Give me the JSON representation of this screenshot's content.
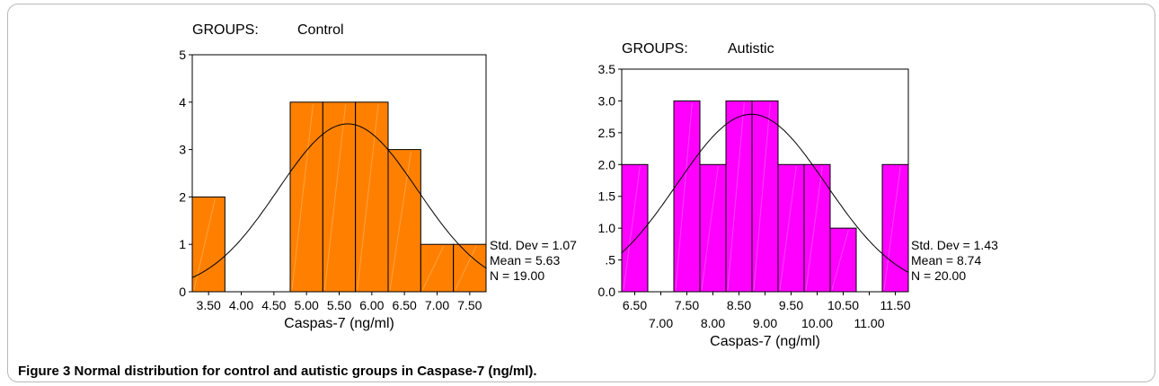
{
  "caption": {
    "label": "Figure 3",
    "text": "Normal distribution for control and autistic groups in Caspase-7 (ng/ml)."
  },
  "chart_data": [
    {
      "type": "bar",
      "group_label": "GROUPS:",
      "group_value": "Control",
      "xlabel": "Caspas-7 (ng/ml)",
      "bar_color": "#ff8000",
      "bins": [
        3.5,
        4.0,
        4.5,
        5.0,
        5.5,
        6.0,
        6.5,
        7.0,
        7.5
      ],
      "values": [
        2,
        0,
        0,
        4,
        4,
        4,
        3,
        1,
        1
      ],
      "x_ticks": [
        "3.50",
        "4.00",
        "4.50",
        "5.00",
        "5.50",
        "6.00",
        "6.50",
        "7.00",
        "7.50"
      ],
      "y_ticks": [
        "0",
        "1",
        "2",
        "3",
        "4",
        "5"
      ],
      "y_tick_values": [
        0,
        1,
        2,
        3,
        4,
        5
      ],
      "ylim": [
        0,
        5
      ],
      "curve": {
        "mean": 5.63,
        "std": 1.07,
        "n": 19
      },
      "stats": [
        "Std. Dev = 1.07",
        "Mean = 5.63",
        "N = 19.00"
      ]
    },
    {
      "type": "bar",
      "group_label": "GROUPS:",
      "group_value": "Autistic",
      "xlabel": "Caspas-7 (ng/ml)",
      "bar_color": "#ff00ff",
      "bins": [
        6.5,
        7.0,
        7.5,
        8.0,
        8.5,
        9.0,
        9.5,
        10.0,
        10.5,
        11.0,
        11.5
      ],
      "values": [
        2,
        0,
        3,
        2,
        3,
        3,
        2,
        2,
        1,
        0,
        2
      ],
      "x_ticks": [
        "6.50",
        "7.00",
        "7.50",
        "8.00",
        "8.50",
        "9.00",
        "9.50",
        "10.00",
        "10.50",
        "11.00",
        "11.50"
      ],
      "y_ticks": [
        "0.0",
        ".5",
        "1.0",
        "1.5",
        "2.0",
        "2.5",
        "3.0",
        "3.5"
      ],
      "y_tick_values": [
        0,
        0.5,
        1.0,
        1.5,
        2.0,
        2.5,
        3.0,
        3.5
      ],
      "ylim": [
        0,
        3.5
      ],
      "curve": {
        "mean": 8.74,
        "std": 1.43,
        "n": 20
      },
      "stats": [
        "Std. Dev = 1.43",
        "Mean = 8.74",
        "N = 20.00"
      ]
    }
  ]
}
